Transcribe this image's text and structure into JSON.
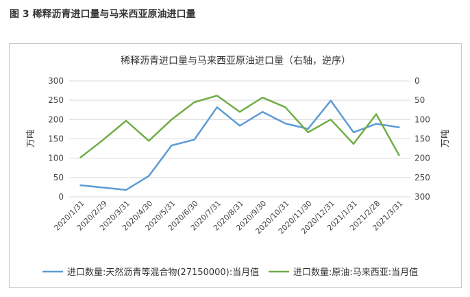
{
  "figure_caption": "图 3  稀释沥青进口量与马来西亚原油进口量",
  "chart_data": {
    "type": "line",
    "title": "稀释沥青进口量与马来西亚原油进口量（右轴，逆序）",
    "left_axis": {
      "label": "万吨",
      "ylim": [
        0,
        300
      ],
      "ticks": [
        "0",
        "50",
        "100",
        "150",
        "200",
        "250",
        "300"
      ]
    },
    "right_axis": {
      "label": "万吨",
      "ylim": [
        0,
        300
      ],
      "reversed": true,
      "ticks": [
        "0",
        "50",
        "100",
        "150",
        "200",
        "250",
        "300"
      ]
    },
    "categories": [
      "2020/1/31",
      "2020/2/29",
      "2020/3/31",
      "2020/4/30",
      "2020/5/31",
      "2020/6/30",
      "2020/7/31",
      "2020/8/31",
      "2020/9/30",
      "2020/10/31",
      "2020/11/30",
      "2020/12/31",
      "2021/1/31",
      "2021/2/28",
      "2021/3/31"
    ],
    "grid": "horizontal",
    "legend_position": "bottom",
    "series": [
      {
        "name": "进口数量:天然沥青等混合物(27150000):当月值",
        "axis": "left",
        "color": "#5b9bd5",
        "values": [
          30,
          24,
          18,
          54,
          133,
          148,
          232,
          184,
          220,
          190,
          176,
          249,
          167,
          189,
          180
        ]
      },
      {
        "name": "进口数量:原油:马来西亚:当月值",
        "axis": "right",
        "color": "#70ad47",
        "values": [
          198,
          152,
          103,
          155,
          100,
          55,
          38,
          80,
          43,
          68,
          133,
          100,
          163,
          86,
          192
        ]
      }
    ]
  }
}
